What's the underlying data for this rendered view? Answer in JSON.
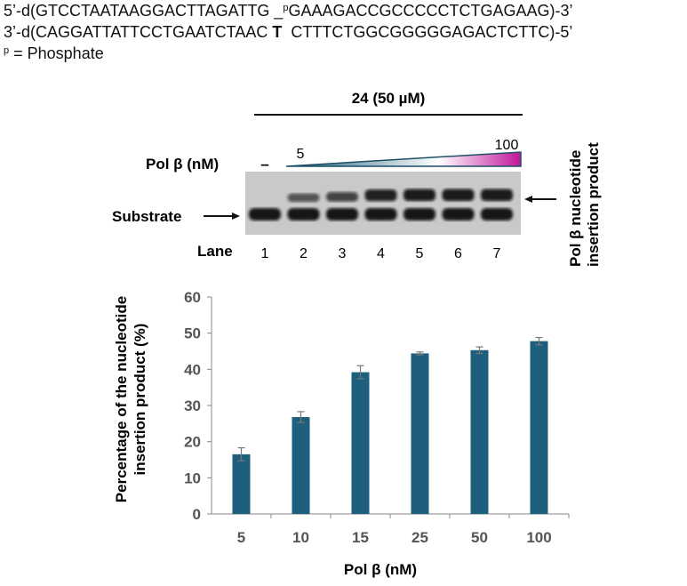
{
  "sequence": {
    "line1_left": "5’-d(GTCCTAATAAGGACTTAGATTG _",
    "line1_sup": "p",
    "line1_right": "GAAAGACCGCCCCCTCTGAGAAG)-3’",
    "line2_left": "3’-d(CAGGATTATTCCTGAATCTAAC ",
    "line2_bold": "T",
    "line2_right": "  CTTTCTGGCGGGGGAGACTCTTC)-5’",
    "legend_sup": "p",
    "legend_text": " = Phosphate"
  },
  "gel": {
    "compound_label": "24 (50 µM)",
    "enzyme_label": "Pol β (nM)",
    "minus_label": "–",
    "gradient_start": "5",
    "gradient_end": "100",
    "substrate_label": "Substrate",
    "product_label_line1": "Pol β nucleotide",
    "product_label_line2": "insertion product",
    "lane_title": "Lane",
    "lanes": [
      "1",
      "2",
      "3",
      "4",
      "5",
      "6",
      "7"
    ],
    "product_band_intensity": [
      0.0,
      0.45,
      0.6,
      0.9,
      0.95,
      0.95,
      0.95
    ],
    "colors": {
      "gradient_left": "#1e5f7e",
      "gradient_right": "#c0169a",
      "gel_background": "#c9c9c9",
      "band": "#111111"
    }
  },
  "chart_data": {
    "type": "bar",
    "categories": [
      "5",
      "10",
      "15",
      "25",
      "50",
      "100"
    ],
    "values": [
      16.5,
      26.8,
      39.2,
      44.4,
      45.3,
      47.8
    ],
    "errors": [
      1.8,
      1.5,
      1.8,
      0.4,
      0.9,
      1.0
    ],
    "ylabel_line1": "Percentage of the nucleotide",
    "ylabel_line2": "insertion product (%)",
    "xlabel": "Pol β (nM)",
    "ylim": [
      0,
      60
    ],
    "yticks": [
      "0",
      "10",
      "20",
      "30",
      "40",
      "50",
      "60"
    ],
    "grid": false,
    "bar_color": "#1e5f7e"
  }
}
